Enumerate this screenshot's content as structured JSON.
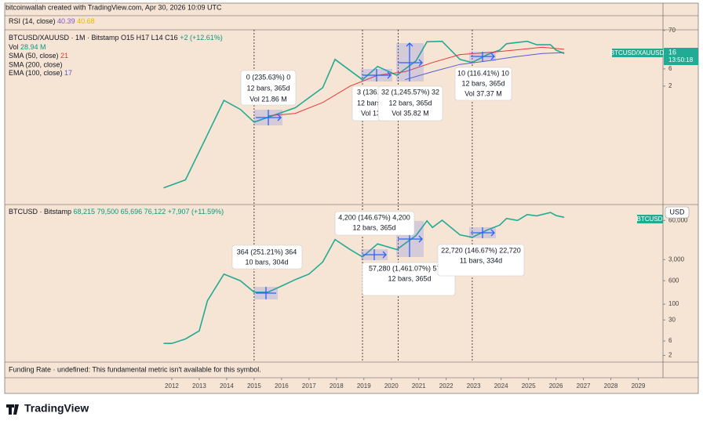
{
  "header": {
    "credit": "bitcoinwallah created with TradingView.com, Apr 30, 2026 10:09 UTC"
  },
  "rsi": {
    "label": "RSI (14, close)",
    "value": "40.39",
    "value2": "40.68"
  },
  "markers": {
    "x": [
      2015,
      2018.95,
      2020.25,
      2022.95
    ]
  },
  "chart_data": [
    {
      "type": "line",
      "log_scale": true,
      "title": "BTCUSD/XAUUSD · 1M · Bitstamp",
      "stats": [
        "O15",
        "H17",
        "L14",
        "C16",
        "+2 (+12.61%)"
      ],
      "volume": {
        "label": "Vol",
        "value": "28.94 M"
      },
      "indicators": [
        "SMA (50, close)",
        "SMA (200, close)",
        "EMA (100, close)"
      ],
      "indicator_values": [
        "21",
        "17"
      ],
      "x": [
        2011.7,
        2012.5,
        2013.3,
        2013.9,
        2014.5,
        2015,
        2016.5,
        2017.5,
        2017.95,
        2018.95,
        2019.5,
        2020.2,
        2020.9,
        2021.3,
        2021.85,
        2022.5,
        2022.95,
        2023.5,
        2023.95,
        2024.2,
        2024.95,
        2025.3,
        2025.8,
        2026,
        2026.3
      ],
      "values": [
        0.003,
        0.005,
        0.09,
        0.8,
        0.45,
        0.2,
        0.5,
        1.8,
        11,
        3,
        7,
        4,
        10,
        34,
        35,
        11,
        9,
        15,
        20,
        30,
        35,
        28,
        28,
        20,
        16
      ],
      "color": "#22ab94",
      "series": [
        {
          "name": "SMA (50, close)",
          "color": "#e53935",
          "x": [
            2015.5,
            2016.5,
            2017.5,
            2018.5,
            2019.5,
            2020.5,
            2021.5,
            2022.5,
            2023.5,
            2024.5,
            2025.5,
            2026.3
          ],
          "values": [
            0.3,
            0.35,
            0.7,
            2,
            4,
            5,
            9,
            15,
            17,
            20,
            24,
            21
          ]
        },
        {
          "name": "EMA (100, close)",
          "color": "#5b5bd6",
          "x": [
            2020.5,
            2021.5,
            2022.5,
            2023.5,
            2024.5,
            2025.5,
            2026.3
          ],
          "values": [
            3,
            5,
            8,
            10,
            13,
            16,
            17
          ]
        }
      ],
      "xlim": [
        2005.94,
        2029.9
      ],
      "ylim": [
        0.0012,
        73
      ],
      "yticks": [
        2,
        6,
        70
      ],
      "badge": "BTCUSD/XAUUSD",
      "last_price": "16",
      "countdown": "13:50:18",
      "annotations": [
        [
          "0 (235.63%) 0",
          "12 bars, 365d",
          "Vol 21.86 M"
        ],
        [
          "3 (136.",
          "12 bars",
          "Vol 13"
        ],
        [
          "32 (1,245.57%) 32",
          "12 bars, 365d",
          "Vol 35.82 M"
        ],
        [
          "10 (116.41%) 10",
          "12 bars, 365d",
          "Vol 37.37 M"
        ]
      ]
    },
    {
      "type": "line",
      "log_scale": true,
      "title": "BTCUSD · Bitstamp",
      "stats": [
        "68,215",
        "79,500",
        "65,696",
        "76,122",
        "+7,907 (+11.59%)"
      ],
      "x": [
        2011.7,
        2012,
        2012.5,
        2013,
        2013.3,
        2013.9,
        2014.5,
        2015,
        2015.5,
        2016,
        2016.5,
        2017,
        2017.5,
        2017.95,
        2018.5,
        2018.95,
        2019.5,
        2020.2,
        2020.9,
        2021.3,
        2021.5,
        2021.85,
        2022.5,
        2022.95,
        2023.5,
        2023.95,
        2024.2,
        2024.6,
        2024.95,
        2025.3,
        2025.8,
        2026,
        2026.3
      ],
      "values": [
        5,
        5,
        7,
        13,
        130,
        1000,
        600,
        250,
        250,
        400,
        650,
        1000,
        2500,
        14000,
        6500,
        3700,
        10000,
        6500,
        19000,
        58000,
        35000,
        61000,
        20000,
        16500,
        29000,
        42000,
        70000,
        60000,
        94000,
        85000,
        110000,
        87000,
        76000
      ],
      "color": "#22ab94",
      "xlim": [
        2005.94,
        2029.9
      ],
      "ylim": [
        1.2,
        190000
      ],
      "yticks": [
        2,
        6,
        30,
        100,
        600,
        {
          "value": 3000,
          "label": "3,000"
        },
        {
          "value": 60000,
          "label": "60,000"
        }
      ],
      "xticks": [
        2012,
        2013,
        2014,
        2015,
        2016,
        2017,
        2018,
        2019,
        2020,
        2021,
        2022,
        2023,
        2024,
        2025,
        2026,
        2027,
        2028,
        2029
      ],
      "badge": "BTCUSD",
      "currency": "USD",
      "annotations": [
        [
          "364 (251.21%) 364",
          "10 bars, 304d"
        ],
        [
          "4,200 (146.67%) 4,200",
          "12 bars, 365d"
        ],
        [
          "57,280 (1,461.07%) 57,",
          "12 bars, 365d"
        ],
        [
          "22,720 (146.67%) 22,720",
          "11 bars, 334d"
        ]
      ]
    }
  ],
  "footer": {
    "funding": "Funding Rate · undefined: This fundamental metric isn't available for this symbol.",
    "logo": "TradingView"
  }
}
